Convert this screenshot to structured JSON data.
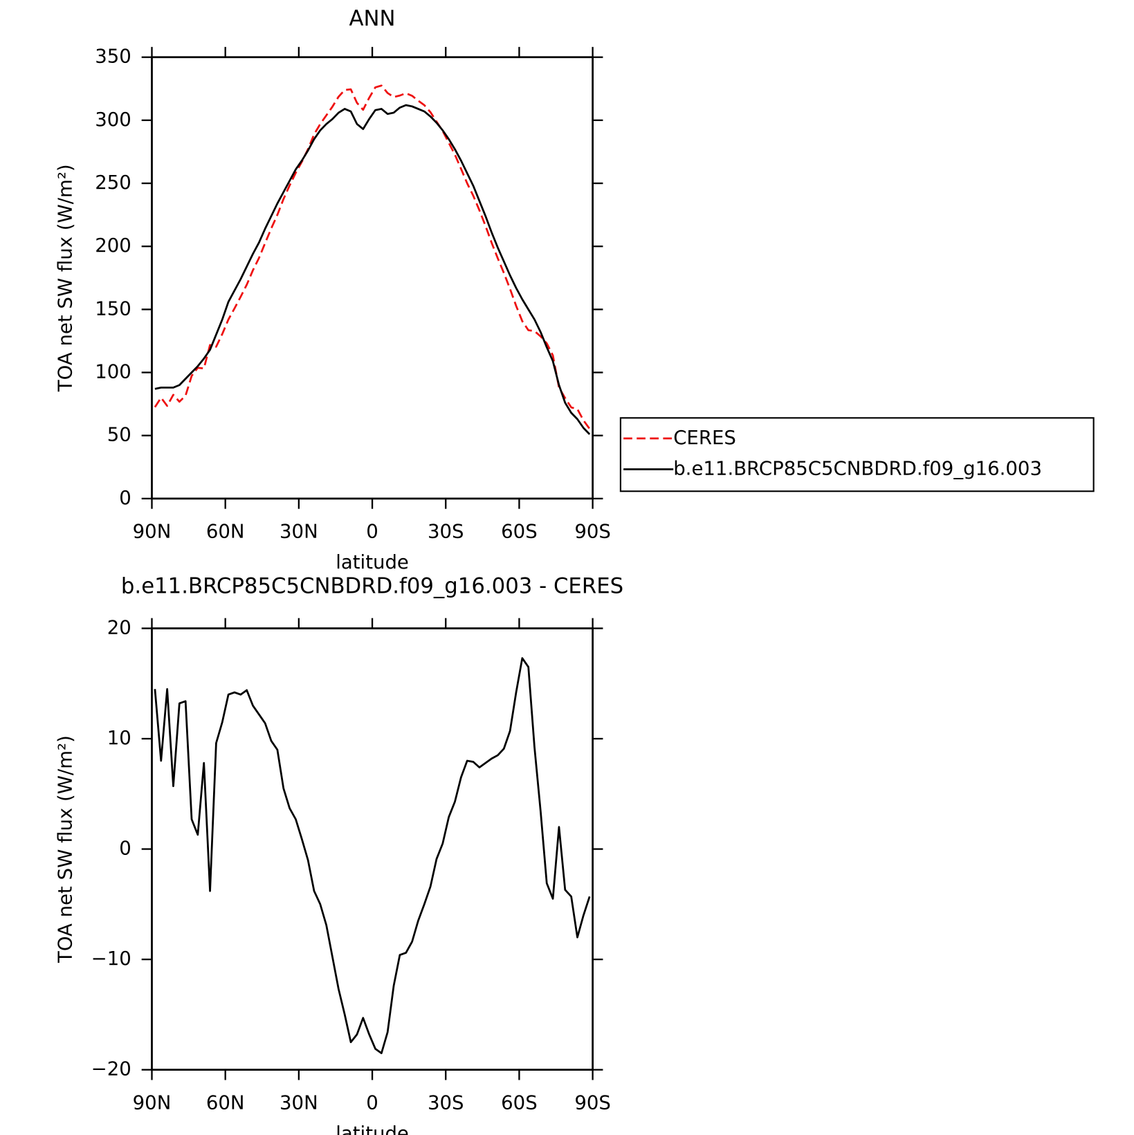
{
  "chart_data": [
    {
      "type": "line",
      "title": "ANN",
      "xlabel": "latitude",
      "ylabel": "TOA net SW flux (W/m²)",
      "x": [
        88.75,
        86.25,
        83.75,
        81.25,
        78.75,
        76.25,
        73.75,
        71.25,
        68.75,
        66.25,
        63.75,
        61.25,
        58.75,
        56.25,
        53.75,
        51.25,
        48.75,
        46.25,
        43.75,
        41.25,
        38.75,
        36.25,
        33.75,
        31.25,
        28.75,
        26.25,
        23.75,
        21.25,
        18.75,
        16.25,
        13.75,
        11.25,
        8.75,
        6.25,
        3.75,
        1.25,
        -1.25,
        -3.75,
        -6.25,
        -8.75,
        -11.25,
        -13.75,
        -16.25,
        -18.75,
        -21.25,
        -23.75,
        -26.25,
        -28.75,
        -31.25,
        -33.75,
        -36.25,
        -38.75,
        -41.25,
        -43.75,
        -46.25,
        -48.75,
        -51.25,
        -53.75,
        -56.25,
        -58.75,
        -61.25,
        -63.75,
        -66.25,
        -68.75,
        -71.25,
        -73.75,
        -76.25,
        -78.75,
        -81.25,
        -83.75,
        -86.25,
        -88.75
      ],
      "xlim": [
        90,
        -90
      ],
      "xticks": [
        {
          "value": 90,
          "label": "90N"
        },
        {
          "value": 60,
          "label": "60N"
        },
        {
          "value": 30,
          "label": "30N"
        },
        0,
        {
          "value": -30,
          "label": "30S"
        },
        {
          "value": -60,
          "label": "60S"
        },
        {
          "value": -90,
          "label": "90S"
        }
      ],
      "ylim": [
        0,
        350
      ],
      "yticks": [
        0,
        50,
        100,
        150,
        200,
        250,
        300,
        350
      ],
      "legend": "right",
      "series": [
        {
          "name": "CERES",
          "color": "#ee1111",
          "dash": "dashed",
          "values": [
            72.5,
            80,
            73.5,
            82.3,
            76.8,
            81.6,
            97.3,
            103.7,
            103.2,
            121.8,
            120.4,
            130.5,
            142,
            150.8,
            160,
            169.6,
            181,
            190.8,
            202.6,
            214.2,
            225,
            237.5,
            248.3,
            258.3,
            267.1,
            277,
            288.8,
            297,
            303.9,
            310.8,
            318.7,
            324,
            324.5,
            313.8,
            308.3,
            317.8,
            326.1,
            327.5,
            321.6,
            318.4,
            319.6,
            321.4,
            319.4,
            315.5,
            312,
            306.4,
            298.9,
            291.5,
            282.1,
            272.7,
            261.5,
            250,
            240.1,
            228.6,
            216.2,
            202.8,
            190.5,
            178.9,
            166.3,
            152.8,
            140.7,
            133.5,
            132.8,
            128.6,
            123.1,
            113.5,
            88,
            79.7,
            72.3,
            71,
            62,
            55.3
          ]
        },
        {
          "name": "b.e11.BRCP85C5CNBDRD.f09_g16.003",
          "color": "#000000",
          "dash": "solid",
          "values": [
            87,
            88,
            88,
            88,
            90,
            95,
            100,
            105,
            111,
            118,
            130,
            142,
            156,
            165,
            174,
            184,
            194,
            203,
            214,
            224,
            234,
            243,
            252,
            261,
            268,
            276,
            285,
            292,
            297,
            301,
            306,
            309,
            307,
            297,
            293,
            301,
            308,
            309,
            305,
            306,
            310,
            312,
            311,
            309,
            307,
            303,
            298,
            292,
            285,
            277,
            268,
            258,
            248,
            236,
            224,
            211,
            199,
            188,
            177,
            167,
            158,
            150,
            142,
            132,
            120,
            109,
            90,
            76,
            68,
            63,
            56,
            51
          ]
        }
      ]
    },
    {
      "type": "line",
      "title": "b.e11.BRCP85C5CNBDRD.f09_g16.003 - CERES",
      "xlabel": "latitude",
      "ylabel": "TOA net SW flux (W/m²)",
      "x": [
        88.75,
        86.25,
        83.75,
        81.25,
        78.75,
        76.25,
        73.75,
        71.25,
        68.75,
        66.25,
        63.75,
        61.25,
        58.75,
        56.25,
        53.75,
        51.25,
        48.75,
        46.25,
        43.75,
        41.25,
        38.75,
        36.25,
        33.75,
        31.25,
        28.75,
        26.25,
        23.75,
        21.25,
        18.75,
        16.25,
        13.75,
        11.25,
        8.75,
        6.25,
        3.75,
        1.25,
        -1.25,
        -3.75,
        -6.25,
        -8.75,
        -11.25,
        -13.75,
        -16.25,
        -18.75,
        -21.25,
        -23.75,
        -26.25,
        -28.75,
        -31.25,
        -33.75,
        -36.25,
        -38.75,
        -41.25,
        -43.75,
        -46.25,
        -48.75,
        -51.25,
        -53.75,
        -56.25,
        -58.75,
        -61.25,
        -63.75,
        -66.25,
        -68.75,
        -71.25,
        -73.75,
        -76.25,
        -78.75,
        -81.25,
        -83.75,
        -86.25,
        -88.75
      ],
      "xlim": [
        90,
        -90
      ],
      "xticks": [
        {
          "value": 90,
          "label": "90N"
        },
        {
          "value": 60,
          "label": "60N"
        },
        {
          "value": 30,
          "label": "30N"
        },
        0,
        {
          "value": -30,
          "label": "30S"
        },
        {
          "value": -60,
          "label": "60S"
        },
        {
          "value": -90,
          "label": "90S"
        }
      ],
      "ylim": [
        -20,
        20
      ],
      "yticks": [
        {
          "value": -20,
          "label": "−20"
        },
        {
          "value": -10,
          "label": "−10"
        },
        0,
        10,
        20
      ],
      "color": "#000000",
      "values": [
        14.5,
        8.0,
        14.5,
        5.7,
        13.2,
        13.4,
        2.7,
        1.3,
        7.8,
        -3.8,
        9.6,
        11.5,
        14.0,
        14.2,
        14.0,
        14.4,
        13.0,
        12.2,
        11.4,
        9.8,
        9.0,
        5.5,
        3.7,
        2.7,
        0.9,
        -1.0,
        -3.8,
        -5.0,
        -6.9,
        -9.8,
        -12.7,
        -15.0,
        -17.5,
        -16.8,
        -15.3,
        -16.8,
        -18.1,
        -18.5,
        -16.6,
        -12.4,
        -9.6,
        -9.4,
        -8.4,
        -6.5,
        -5.0,
        -3.4,
        -0.9,
        0.5,
        2.9,
        4.3,
        6.5,
        8.0,
        7.9,
        7.4,
        7.8,
        8.2,
        8.5,
        9.1,
        10.7,
        14.2,
        17.3,
        16.5,
        9.2,
        3.4,
        -3.1,
        -4.5,
        2.0,
        -3.7,
        -4.3,
        -8.0,
        -6.0,
        -4.3
      ]
    }
  ]
}
